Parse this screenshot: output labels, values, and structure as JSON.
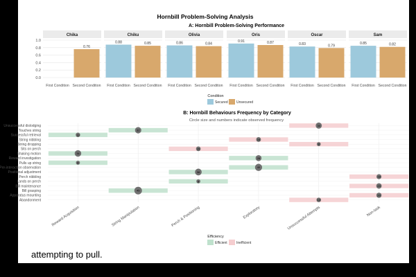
{
  "figure_title": "Hornbill Problem-Solving Analysis",
  "caption": "attempting to pull.",
  "colors": {
    "secured": "#9dc9dc",
    "unsecured": "#d8a86c",
    "efficient": "#bfe1cd",
    "inefficient": "#f5cdcf",
    "facet_strip": "#ebebeb",
    "circle": "#707070"
  },
  "chart_data": [
    {
      "type": "bar",
      "title": "A: Hornbill Problem-Solving Performance",
      "ylim": [
        0,
        1.0
      ],
      "yticks": [
        "0.0",
        "0.2",
        "0.4",
        "0.6",
        "0.8",
        "1.0"
      ],
      "categories": [
        "First Condition",
        "Second Condition"
      ],
      "facets": [
        {
          "name": "Chika",
          "values": [
            null,
            0.76
          ],
          "labels": [
            "",
            "0.76"
          ]
        },
        {
          "name": "Chiku",
          "values": [
            0.88,
            0.85
          ],
          "labels": [
            "0.88",
            "0.85"
          ]
        },
        {
          "name": "Olivia",
          "values": [
            0.86,
            0.84
          ],
          "labels": [
            "0.86",
            "0.84"
          ]
        },
        {
          "name": "Oris",
          "values": [
            0.91,
            0.87
          ],
          "labels": [
            "0.91",
            "0.87"
          ]
        },
        {
          "name": "Oscar",
          "values": [
            0.83,
            0.79
          ],
          "labels": [
            "0.83",
            "0.79"
          ]
        },
        {
          "name": "Sam",
          "values": [
            0.85,
            0.82
          ],
          "labels": [
            "0.85",
            "0.82"
          ]
        }
      ],
      "legend": {
        "title": "Condition",
        "entries": [
          "Secured",
          "Unsecured"
        ],
        "placement": "bottom"
      }
    },
    {
      "type": "scatter",
      "title": "B: Hornbill Behaviours Frequency by Category",
      "subtitle": "Circle size and numbers indicate observed frequency",
      "categories": [
        "Reward Acquisition",
        "String Manipulation",
        "Perch & Positioning",
        "Exploratory",
        "Unsuccessful Attempts",
        "Non-task"
      ],
      "behaviours": [
        "Unsuccessful dislodging",
        "Touches string",
        "Successful retrieval",
        "String nibbling",
        "String dropping",
        "Sits on perch",
        "Shaking motion",
        "Reward investigation",
        "Pulls up string",
        "Pre-interaction observation",
        "Positional adjustment",
        "Perch nibbling",
        "Lands on perch",
        "Bill maintenance",
        "Bill grasping",
        "Apparatus mounting",
        "Abandonment"
      ],
      "points": [
        {
          "behaviour": "Unsuccessful dislodging",
          "category": "Unsuccessful Attempts",
          "frequency": 30,
          "efficiency": "Inefficient"
        },
        {
          "behaviour": "Touches string",
          "category": "String Manipulation",
          "frequency": 32,
          "efficiency": "Efficient"
        },
        {
          "behaviour": "Successful retrieval",
          "category": "Reward Acquisition",
          "frequency": 13,
          "efficiency": "Efficient"
        },
        {
          "behaviour": "String nibbling",
          "category": "Exploratory",
          "frequency": 16,
          "efficiency": "Inefficient"
        },
        {
          "behaviour": "String dropping",
          "category": "Unsuccessful Attempts",
          "frequency": 8,
          "efficiency": "Inefficient"
        },
        {
          "behaviour": "Sits on perch",
          "category": "Perch & Positioning",
          "frequency": 15,
          "efficiency": "Inefficient"
        },
        {
          "behaviour": "Shaking motion",
          "category": "Reward Acquisition",
          "frequency": 34,
          "efficiency": "Efficient"
        },
        {
          "behaviour": "Reward investigation",
          "category": "Exploratory",
          "frequency": 28,
          "efficiency": "Efficient"
        },
        {
          "behaviour": "Pulls up string",
          "category": "Reward Acquisition",
          "frequency": 8,
          "efficiency": "Efficient"
        },
        {
          "behaviour": "Pre-interaction observation",
          "category": "Exploratory",
          "frequency": 40,
          "efficiency": "Efficient"
        },
        {
          "behaviour": "Positional adjustment",
          "category": "Perch & Positioning",
          "frequency": 36,
          "efficiency": "Efficient"
        },
        {
          "behaviour": "Perch nibbling",
          "category": "Non-task",
          "frequency": 18,
          "efficiency": "Inefficient"
        },
        {
          "behaviour": "Lands on perch",
          "category": "Perch & Positioning",
          "frequency": 8,
          "efficiency": "Efficient"
        },
        {
          "behaviour": "Bill maintenance",
          "category": "Non-task",
          "frequency": 23,
          "efficiency": "Inefficient"
        },
        {
          "behaviour": "Bill grasping",
          "category": "String Manipulation",
          "frequency": 45,
          "efficiency": "Efficient"
        },
        {
          "behaviour": "Apparatus mounting",
          "category": "Non-task",
          "frequency": 20,
          "efficiency": "Inefficient"
        },
        {
          "behaviour": "Abandonment",
          "category": "Unsuccessful Attempts",
          "frequency": 14,
          "efficiency": "Inefficient"
        }
      ],
      "legend": {
        "title": "Efficiency",
        "entries": [
          "Efficient",
          "Inefficient"
        ],
        "placement": "bottom"
      }
    }
  ]
}
